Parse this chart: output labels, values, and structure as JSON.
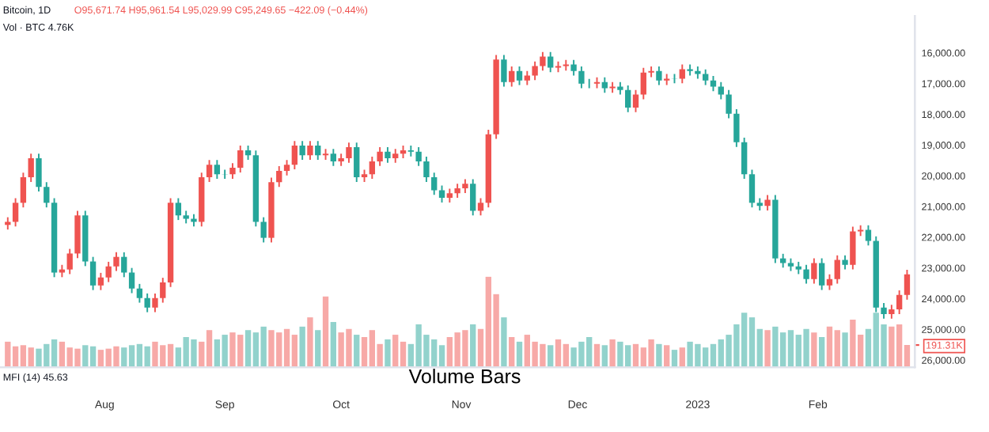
{
  "chart_data": {
    "type": "candlestick",
    "title": "Bitcoin, 1D",
    "annotations": [
      "O95,671.74 H95,961.54 L95,029.99 C95,249.65 −422.09 (−0.44%)",
      "Vol · BTC 4.76K",
      "MFI (14) 45.63",
      "Volume Bars"
    ],
    "x": [
      "2022-07-07",
      "2022-07-09",
      "2022-07-11",
      "2022-07-13",
      "2022-07-15",
      "2022-07-17",
      "2022-07-19",
      "2022-07-21",
      "2022-07-23",
      "2022-07-25",
      "2022-07-27",
      "2022-07-29",
      "2022-07-31",
      "2022-08-02",
      "2022-08-04",
      "2022-08-06",
      "2022-08-08",
      "2022-08-10",
      "2022-08-12",
      "2022-08-14",
      "2022-08-16",
      "2022-08-18",
      "2022-08-20",
      "2022-08-22",
      "2022-08-24",
      "2022-08-26",
      "2022-08-28",
      "2022-08-30",
      "2022-09-01",
      "2022-09-03",
      "2022-09-05",
      "2022-09-07",
      "2022-09-09",
      "2022-09-11",
      "2022-09-13",
      "2022-09-15",
      "2022-09-17",
      "2022-09-19",
      "2022-09-21",
      "2022-09-23",
      "2022-09-25",
      "2022-09-27",
      "2022-09-29",
      "2022-10-01",
      "2022-10-03",
      "2022-10-05",
      "2022-10-07",
      "2022-10-09",
      "2022-10-11",
      "2022-10-13",
      "2022-10-15",
      "2022-10-17",
      "2022-10-19",
      "2022-10-21",
      "2022-10-23",
      "2022-10-25",
      "2022-10-27",
      "2022-10-29",
      "2022-10-31",
      "2022-11-02",
      "2022-11-04",
      "2022-11-06",
      "2022-11-08",
      "2022-11-10",
      "2022-11-12",
      "2022-11-14",
      "2022-11-16",
      "2022-11-18",
      "2022-11-20",
      "2022-11-22",
      "2022-11-24",
      "2022-11-26",
      "2022-11-28",
      "2022-11-30",
      "2022-12-02",
      "2022-12-04",
      "2022-12-06",
      "2022-12-08",
      "2022-12-10",
      "2022-12-12",
      "2022-12-14",
      "2022-12-16",
      "2022-12-18",
      "2022-12-20",
      "2022-12-22",
      "2022-12-24",
      "2022-12-26",
      "2022-12-28",
      "2022-12-30",
      "2023-01-01",
      "2023-01-03",
      "2023-01-05",
      "2023-01-07",
      "2023-01-09",
      "2023-01-11",
      "2023-01-13",
      "2023-01-15",
      "2023-01-17",
      "2023-01-19",
      "2023-01-21",
      "2023-01-23",
      "2023-01-25",
      "2023-01-27",
      "2023-01-29",
      "2023-01-31",
      "2023-02-02",
      "2023-02-04",
      "2023-02-06",
      "2023-02-08",
      "2023-02-10",
      "2023-02-12",
      "2023-02-14",
      "2023-02-16",
      "2023-02-18",
      "2023-02-20",
      "2023-02-22",
      "2023-02-24"
    ],
    "ohlc": [
      [
        21600,
        21750,
        21350,
        21500
      ],
      [
        21500,
        21650,
        20730,
        20880
      ],
      [
        20880,
        21030,
        19900,
        20050
      ],
      [
        20050,
        20200,
        19280,
        19430
      ],
      [
        19430,
        20510,
        19280,
        20360
      ],
      [
        20360,
        21030,
        20210,
        20880
      ],
      [
        20880,
        23300,
        20730,
        23150
      ],
      [
        23150,
        23300,
        22900,
        23050
      ],
      [
        23050,
        23200,
        22380,
        22530
      ],
      [
        22530,
        22680,
        21140,
        21290
      ],
      [
        21290,
        22940,
        21140,
        22790
      ],
      [
        22790,
        23720,
        22640,
        23570
      ],
      [
        23570,
        23720,
        23160,
        23310
      ],
      [
        23310,
        23460,
        22800,
        22950
      ],
      [
        22950,
        23100,
        22490,
        22640
      ],
      [
        22640,
        23300,
        22490,
        23150
      ],
      [
        23150,
        23820,
        23000,
        23670
      ],
      [
        23670,
        24130,
        23520,
        23980
      ],
      [
        23980,
        24440,
        23830,
        24290
      ],
      [
        24290,
        24440,
        23830,
        23980
      ],
      [
        23980,
        24130,
        23320,
        23470
      ],
      [
        23470,
        23620,
        20730,
        20880
      ],
      [
        20880,
        21440,
        20730,
        21290
      ],
      [
        21290,
        21550,
        21140,
        21400
      ],
      [
        21400,
        21650,
        21250,
        21500
      ],
      [
        21500,
        21650,
        19900,
        20050
      ],
      [
        20050,
        20200,
        19490,
        19640
      ],
      [
        19640,
        20100,
        19490,
        19950
      ],
      [
        19950,
        20100,
        19800,
        19950
      ],
      [
        19950,
        20100,
        19590,
        19740
      ],
      [
        19740,
        19890,
        19020,
        19170
      ],
      [
        19170,
        19480,
        19020,
        19330
      ],
      [
        19330,
        21650,
        19180,
        21500
      ],
      [
        21500,
        22170,
        21350,
        22020
      ],
      [
        22020,
        22170,
        20060,
        20210
      ],
      [
        20210,
        20360,
        19690,
        19840
      ],
      [
        19840,
        19990,
        19490,
        19640
      ],
      [
        19640,
        19790,
        18870,
        19020
      ],
      [
        19020,
        19480,
        18870,
        19330
      ],
      [
        19330,
        19480,
        18870,
        19020
      ],
      [
        19020,
        19480,
        18870,
        19330
      ],
      [
        19330,
        19480,
        19130,
        19280
      ],
      [
        19280,
        19680,
        19130,
        19530
      ],
      [
        19530,
        19680,
        19280,
        19430
      ],
      [
        19430,
        19580,
        18920,
        19070
      ],
      [
        19070,
        20200,
        18920,
        20050
      ],
      [
        20050,
        20200,
        19800,
        19950
      ],
      [
        19950,
        20100,
        19380,
        19530
      ],
      [
        19530,
        19680,
        19070,
        19220
      ],
      [
        19220,
        19580,
        19070,
        19430
      ],
      [
        19430,
        19580,
        19130,
        19280
      ],
      [
        19280,
        19430,
        19020,
        19170
      ],
      [
        19170,
        19370,
        19020,
        19220
      ],
      [
        19220,
        19680,
        19070,
        19530
      ],
      [
        19530,
        20200,
        19380,
        20050
      ],
      [
        20050,
        20620,
        19900,
        20470
      ],
      [
        20470,
        20870,
        20320,
        20720
      ],
      [
        20720,
        20870,
        20420,
        20570
      ],
      [
        20570,
        20720,
        20260,
        20410
      ],
      [
        20410,
        20560,
        20110,
        20260
      ],
      [
        20260,
        21290,
        20110,
        21140
      ],
      [
        21140,
        21290,
        20730,
        20880
      ],
      [
        20880,
        21030,
        18500,
        18650
      ],
      [
        18650,
        18800,
        16070,
        16220
      ],
      [
        16220,
        17100,
        16070,
        16950
      ],
      [
        16950,
        17100,
        16440,
        16590
      ],
      [
        16590,
        17050,
        16440,
        16900
      ],
      [
        16900,
        17050,
        16590,
        16740
      ],
      [
        16740,
        16890,
        16280,
        16430
      ],
      [
        16430,
        16580,
        15970,
        16120
      ],
      [
        16120,
        16630,
        15970,
        16480
      ],
      [
        16480,
        16630,
        16280,
        16430
      ],
      [
        16430,
        16580,
        16230,
        16380
      ],
      [
        16380,
        16740,
        16230,
        16590
      ],
      [
        16590,
        17150,
        16440,
        17000
      ],
      [
        17000,
        17150,
        16850,
        17000
      ],
      [
        17000,
        17150,
        16800,
        16950
      ],
      [
        16950,
        17300,
        16800,
        17150
      ],
      [
        17150,
        17300,
        16950,
        17100
      ],
      [
        17100,
        17360,
        16950,
        17210
      ],
      [
        17210,
        17930,
        17060,
        17780
      ],
      [
        17780,
        17930,
        17210,
        17360
      ],
      [
        17360,
        17510,
        16490,
        16640
      ],
      [
        16640,
        16790,
        16440,
        16590
      ],
      [
        16590,
        17050,
        16440,
        16900
      ],
      [
        16900,
        17050,
        16690,
        16840
      ],
      [
        16840,
        16990,
        16690,
        16840
      ],
      [
        16840,
        16990,
        16380,
        16530
      ],
      [
        16530,
        16740,
        16380,
        16590
      ],
      [
        16590,
        16840,
        16440,
        16690
      ],
      [
        16690,
        17050,
        16540,
        16900
      ],
      [
        16900,
        17250,
        16750,
        17100
      ],
      [
        17100,
        17510,
        16950,
        17360
      ],
      [
        17360,
        18130,
        17210,
        17980
      ],
      [
        17980,
        19060,
        17830,
        18910
      ],
      [
        18910,
        20100,
        18760,
        19950
      ],
      [
        19950,
        21030,
        19800,
        20880
      ],
      [
        20880,
        21130,
        20730,
        20980
      ],
      [
        20980,
        21130,
        20630,
        20780
      ],
      [
        20780,
        22840,
        20630,
        22690
      ],
      [
        22690,
        22990,
        22540,
        22840
      ],
      [
        22840,
        23100,
        22690,
        22950
      ],
      [
        22950,
        23200,
        22800,
        23050
      ],
      [
        23050,
        23510,
        22900,
        23360
      ],
      [
        23360,
        23510,
        22690,
        22840
      ],
      [
        22840,
        23720,
        22690,
        23570
      ],
      [
        23570,
        23720,
        23210,
        23360
      ],
      [
        23360,
        23510,
        22590,
        22740
      ],
      [
        22740,
        23050,
        22590,
        22900
      ],
      [
        22900,
        23050,
        21660,
        21810
      ],
      [
        21810,
        21960,
        21610,
        21760
      ],
      [
        21760,
        22270,
        21610,
        22120
      ],
      [
        22120,
        24440,
        21970,
        24290
      ],
      [
        24290,
        24650,
        24140,
        24500
      ],
      [
        24500,
        24650,
        24200,
        24350
      ],
      [
        24350,
        24500,
        23730,
        23880
      ],
      [
        23880,
        24030,
        23060,
        23210
      ]
    ],
    "colors": [
      "#ef5350",
      "#ef5350",
      "#ef5350",
      "#ef5350",
      "#26a69a",
      "#26a69a",
      "#26a69a",
      "#ef5350",
      "#ef5350",
      "#ef5350",
      "#26a69a",
      "#26a69a",
      "#ef5350",
      "#ef5350",
      "#ef5350",
      "#26a69a",
      "#26a69a",
      "#26a69a",
      "#26a69a",
      "#ef5350",
      "#ef5350",
      "#ef5350",
      "#26a69a",
      "#26a69a",
      "#26a69a",
      "#ef5350",
      "#ef5350",
      "#26a69a",
      "#26a69a",
      "#ef5350",
      "#ef5350",
      "#26a69a",
      "#26a69a",
      "#26a69a",
      "#ef5350",
      "#ef5350",
      "#ef5350",
      "#ef5350",
      "#26a69a",
      "#ef5350",
      "#26a69a",
      "#ef5350",
      "#26a69a",
      "#ef5350",
      "#ef5350",
      "#26a69a",
      "#ef5350",
      "#ef5350",
      "#ef5350",
      "#26a69a",
      "#ef5350",
      "#ef5350",
      "#26a69a",
      "#26a69a",
      "#26a69a",
      "#26a69a",
      "#26a69a",
      "#ef5350",
      "#ef5350",
      "#ef5350",
      "#26a69a",
      "#ef5350",
      "#ef5350",
      "#ef5350",
      "#26a69a",
      "#ef5350",
      "#26a69a",
      "#ef5350",
      "#ef5350",
      "#ef5350",
      "#26a69a",
      "#ef5350",
      "#ef5350",
      "#26a69a",
      "#26a69a",
      "#26a69a",
      "#ef5350",
      "#26a69a",
      "#ef5350",
      "#26a69a",
      "#26a69a",
      "#ef5350",
      "#ef5350",
      "#ef5350",
      "#26a69a",
      "#ef5350",
      "#26a69a",
      "#ef5350",
      "#26a69a",
      "#26a69a",
      "#26a69a",
      "#26a69a",
      "#26a69a",
      "#26a69a",
      "#26a69a",
      "#26a69a",
      "#26a69a",
      "#26a69a",
      "#ef5350",
      "#26a69a",
      "#26a69a",
      "#26a69a",
      "#26a69a",
      "#26a69a",
      "#ef5350",
      "#26a69a",
      "#ef5350",
      "#ef5350",
      "#26a69a",
      "#ef5350",
      "#ef5350",
      "#26a69a",
      "#26a69a",
      "#26a69a",
      "#ef5350",
      "#ef5350",
      "#ef5350"
    ],
    "series": [
      {
        "type": "bar",
        "axis": "y2",
        "values": [
          220,
          180,
          190,
          170,
          160,
          200,
          240,
          220,
          170,
          160,
          190,
          180,
          150,
          160,
          180,
          170,
          190,
          200,
          180,
          220,
          190,
          200,
          170,
          260,
          240,
          220,
          320,
          240,
          280,
          300,
          280,
          320,
          300,
          350,
          320,
          300,
          330,
          280,
          350,
          430,
          320,
          610,
          390,
          300,
          330,
          280,
          260,
          320,
          200,
          240,
          280,
          220,
          200,
          370,
          280,
          240,
          190,
          260,
          300,
          320,
          370,
          330,
          780,
          630,
          430,
          260,
          220,
          280,
          220,
          200,
          190,
          240,
          200,
          170,
          220,
          260,
          200,
          190,
          240,
          220,
          190,
          200,
          170,
          240,
          200,
          190,
          150,
          170,
          220,
          200,
          170,
          200,
          240,
          280,
          370,
          470,
          430,
          330,
          320,
          350,
          300,
          320,
          280,
          330,
          300,
          260,
          350,
          320,
          300,
          410,
          280,
          330,
          470,
          370,
          350,
          370,
          191.31
        ],
        "colors": [
          "#f7a9a7",
          "#f7a9a7",
          "#f7a9a7",
          "#f7a9a7",
          "#92d2cc",
          "#92d2cc",
          "#92d2cc",
          "#f7a9a7",
          "#f7a9a7",
          "#f7a9a7",
          "#92d2cc",
          "#92d2cc",
          "#f7a9a7",
          "#f7a9a7",
          "#f7a9a7",
          "#92d2cc",
          "#92d2cc",
          "#92d2cc",
          "#92d2cc",
          "#f7a9a7",
          "#f7a9a7",
          "#f7a9a7",
          "#92d2cc",
          "#92d2cc",
          "#92d2cc",
          "#f7a9a7",
          "#f7a9a7",
          "#92d2cc",
          "#92d2cc",
          "#f7a9a7",
          "#f7a9a7",
          "#92d2cc",
          "#92d2cc",
          "#92d2cc",
          "#f7a9a7",
          "#f7a9a7",
          "#f7a9a7",
          "#f7a9a7",
          "#92d2cc",
          "#f7a9a7",
          "#92d2cc",
          "#f7a9a7",
          "#92d2cc",
          "#f7a9a7",
          "#f7a9a7",
          "#92d2cc",
          "#f7a9a7",
          "#f7a9a7",
          "#f7a9a7",
          "#92d2cc",
          "#f7a9a7",
          "#f7a9a7",
          "#92d2cc",
          "#92d2cc",
          "#92d2cc",
          "#92d2cc",
          "#92d2cc",
          "#f7a9a7",
          "#f7a9a7",
          "#f7a9a7",
          "#92d2cc",
          "#f7a9a7",
          "#f7a9a7",
          "#f7a9a7",
          "#92d2cc",
          "#f7a9a7",
          "#92d2cc",
          "#f7a9a7",
          "#f7a9a7",
          "#f7a9a7",
          "#92d2cc",
          "#f7a9a7",
          "#f7a9a7",
          "#92d2cc",
          "#92d2cc",
          "#92d2cc",
          "#f7a9a7",
          "#92d2cc",
          "#f7a9a7",
          "#92d2cc",
          "#92d2cc",
          "#f7a9a7",
          "#f7a9a7",
          "#f7a9a7",
          "#92d2cc",
          "#f7a9a7",
          "#92d2cc",
          "#f7a9a7",
          "#92d2cc",
          "#92d2cc",
          "#92d2cc",
          "#92d2cc",
          "#92d2cc",
          "#92d2cc",
          "#92d2cc",
          "#92d2cc",
          "#92d2cc",
          "#92d2cc",
          "#f7a9a7",
          "#92d2cc",
          "#92d2cc",
          "#92d2cc",
          "#92d2cc",
          "#92d2cc",
          "#f7a9a7",
          "#92d2cc",
          "#f7a9a7",
          "#f7a9a7",
          "#92d2cc",
          "#f7a9a7",
          "#f7a9a7",
          "#92d2cc",
          "#92d2cc",
          "#92d2cc",
          "#f7a9a7",
          "#f7a9a7",
          "#f7a9a7"
        ]
      }
    ],
    "xlim": [
      "2022-07-05",
      "2023-02-26"
    ],
    "xticks": [
      {
        "value": "2022-08-01",
        "label": "Aug"
      },
      {
        "value": "2022-09-01",
        "label": "Sep"
      },
      {
        "value": "2022-10-01",
        "label": "Oct"
      },
      {
        "value": "2022-11-01",
        "label": "Nov"
      },
      {
        "value": "2022-12-01",
        "label": "Dec"
      },
      {
        "value": "2023-01-01",
        "label": "2023"
      },
      {
        "value": "2023-02-01",
        "label": "Feb"
      }
    ],
    "ylim": [
      26230,
      14800
    ],
    "yticks": [
      {
        "value": 16000,
        "label": "16,000.00"
      },
      {
        "value": 17000,
        "label": "17,000.00"
      },
      {
        "value": 18000,
        "label": "18,000.00"
      },
      {
        "value": 19000,
        "label": "19,000.00"
      },
      {
        "value": 20000,
        "label": "20,000.00"
      },
      {
        "value": 21000,
        "label": "21,000.00"
      },
      {
        "value": 22000,
        "label": "22,000.00"
      },
      {
        "value": 23000,
        "label": "23,000.00"
      },
      {
        "value": 24000,
        "label": "24,000.00"
      },
      {
        "value": 25000,
        "label": "25,000.00"
      },
      {
        "value": 26000,
        "label": "26,000.00"
      }
    ],
    "y2lim": [
      0,
      3030
    ],
    "y2ticks": [
      {
        "value": 191.31,
        "label": "191.31K"
      }
    ],
    "grid": false,
    "legend": false
  }
}
